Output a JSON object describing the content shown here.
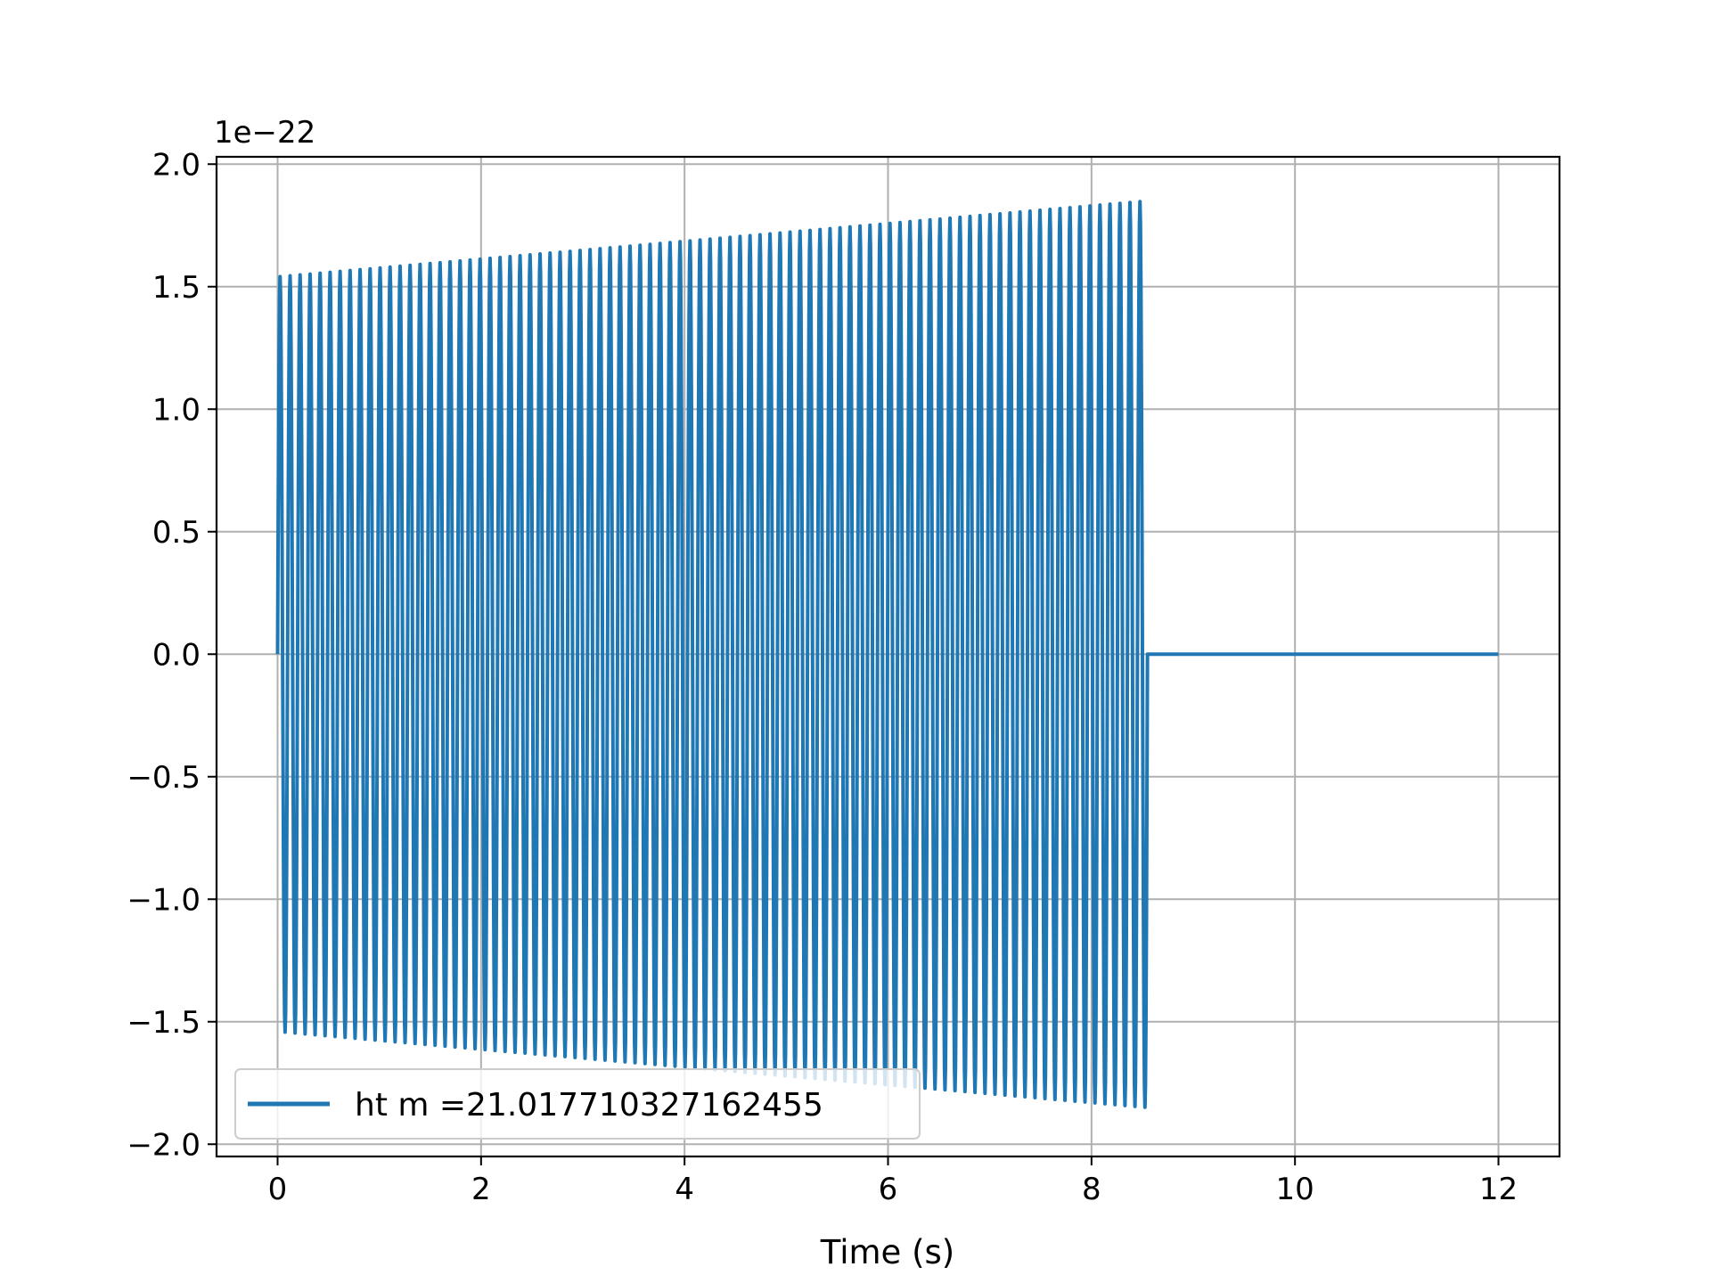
{
  "chart_data": {
    "type": "line",
    "title": "",
    "xlabel": "Time (s)",
    "ylabel": "",
    "y_offset_label": "1e−22",
    "xlim": [
      -0.6,
      12.6
    ],
    "ylim": [
      -2.05,
      2.03
    ],
    "grid": true,
    "legend_position": "lower-left",
    "x_ticks": [
      0,
      2,
      4,
      6,
      8,
      10,
      12
    ],
    "x_tick_labels": [
      "0",
      "2",
      "4",
      "6",
      "8",
      "10",
      "12"
    ],
    "y_ticks": [
      -2.0,
      -1.5,
      -1.0,
      -0.5,
      0.0,
      0.5,
      1.0,
      1.5,
      2.0
    ],
    "y_tick_labels": [
      "−2.0",
      "−1.5",
      "−1.0",
      "−0.5",
      "0.0",
      "0.5",
      "1.0",
      "1.5",
      "2.0"
    ],
    "colors": {
      "series": "#1f77b4",
      "grid": "#b0b0b0",
      "axes": "#000000"
    },
    "series": [
      {
        "name": "ht m =21.017710327162455",
        "signal_end_time": 8.55,
        "cycles": 87,
        "amplitude_start": 1.54,
        "amplitude_end": 1.85,
        "time_end": 12.0,
        "after_signal_value": 0.0
      }
    ]
  }
}
